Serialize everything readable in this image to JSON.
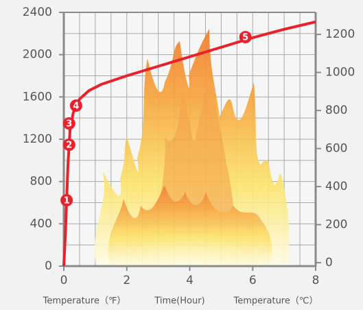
{
  "chart_data": {
    "type": "line",
    "x": [
      0,
      0.05,
      0.09,
      0.13,
      0.17,
      0.2,
      0.3,
      0.5,
      0.8,
      1.2,
      2,
      3,
      4,
      5,
      6,
      7,
      8
    ],
    "series": [
      {
        "color": "#e8212b",
        "values": [
          0,
          300,
          620,
          950,
          1150,
          1300,
          1450,
          1580,
          1660,
          1720,
          1800,
          1890,
          1980,
          2070,
          2160,
          2240,
          2310
        ]
      }
    ],
    "points": {
      "x": [
        0.09,
        0.17,
        0.17,
        0.39,
        5.77
      ],
      "values": [
        623,
        1148,
        1349,
        1518,
        2166
      ],
      "labels": [
        "1",
        "2",
        "3",
        "4",
        "5"
      ],
      "color": "#e8212b"
    },
    "xlim": [
      0,
      8
    ],
    "xticks": [
      0,
      2,
      4,
      6,
      8
    ],
    "xgrid": [
      0,
      0.5,
      1,
      1.5,
      2,
      2.5,
      3,
      3.5,
      4,
      4.5,
      5,
      5.5,
      6,
      6.5,
      7,
      7.5,
      8
    ],
    "ylim": [
      0,
      2400
    ],
    "yticks": [
      0,
      400,
      800,
      1200,
      1600,
      2000,
      2400
    ],
    "ygrid": [
      0,
      200,
      400,
      600,
      800,
      1000,
      1200,
      1400,
      1600,
      1800,
      2000,
      2200,
      2400
    ],
    "y2lim": [
      -18,
      1316
    ],
    "y2ticks": [
      0,
      200,
      400,
      600,
      800,
      1000,
      1200
    ],
    "grid": true,
    "ylabel": "Temperature（℉）",
    "xlabel": "Time(Hour)",
    "y2label": "Temperature（℃）"
  }
}
